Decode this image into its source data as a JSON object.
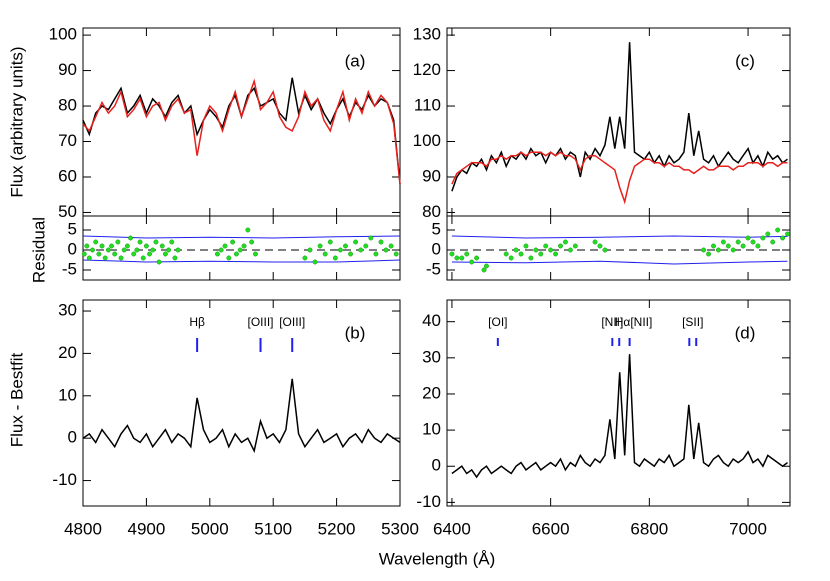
{
  "figure": {
    "xlabel": "Wavelength (Å)"
  },
  "chart_data": [
    {
      "type": "line",
      "label": "(a)",
      "ylabel": "Flux (arbitrary units)",
      "xlim": [
        4800,
        5300
      ],
      "ylim": [
        49,
        102
      ],
      "yticks": [
        50,
        60,
        70,
        80,
        90,
        100
      ],
      "x": [
        4800,
        4810,
        4820,
        4830,
        4840,
        4850,
        4860,
        4870,
        4880,
        4890,
        4900,
        4910,
        4920,
        4930,
        4940,
        4950,
        4960,
        4970,
        4980,
        4990,
        5000,
        5010,
        5020,
        5030,
        5040,
        5050,
        5060,
        5070,
        5080,
        5090,
        5100,
        5110,
        5120,
        5130,
        5140,
        5150,
        5160,
        5170,
        5180,
        5190,
        5200,
        5210,
        5220,
        5230,
        5240,
        5250,
        5260,
        5270,
        5280,
        5290,
        5300
      ],
      "series": [
        {
          "color": "#000000",
          "values": [
            76,
            72,
            78,
            80,
            79,
            82,
            85,
            78,
            80,
            83,
            78,
            82,
            80,
            77,
            81,
            83,
            78,
            80,
            72,
            76,
            79,
            77,
            74,
            80,
            83,
            77,
            83,
            85,
            80,
            81,
            82,
            78,
            76,
            88,
            78,
            83,
            79,
            82,
            78,
            75,
            79,
            82,
            77,
            81,
            79,
            83,
            80,
            82,
            81,
            76,
            58
          ]
        },
        {
          "color": "#e8201c",
          "values": [
            75,
            73,
            77,
            81,
            78,
            80,
            84,
            77,
            79,
            82,
            77,
            80,
            81,
            76,
            80,
            82,
            78,
            79,
            66,
            76,
            80,
            78,
            73,
            79,
            84,
            77,
            82,
            87,
            79,
            81,
            84,
            77,
            74,
            73,
            77,
            84,
            80,
            82,
            76,
            73,
            79,
            84,
            76,
            82,
            78,
            84,
            80,
            83,
            81,
            75,
            58
          ]
        }
      ]
    },
    {
      "type": "scatter",
      "ylabel": "Residual",
      "xlim": [
        4800,
        5300
      ],
      "ylim": [
        -7.5,
        8.5
      ],
      "yticks": [
        -5,
        0,
        5
      ],
      "points": {
        "color": "#22dd22",
        "x": [
          4802,
          4806,
          4810,
          4815,
          4820,
          4825,
          4830,
          4835,
          4840,
          4845,
          4850,
          4855,
          4860,
          4865,
          4870,
          4875,
          4880,
          4885,
          4890,
          4895,
          4900,
          4905,
          4910,
          4915,
          4920,
          4925,
          4930,
          4935,
          4940,
          4945,
          4950,
          5012,
          5018,
          5024,
          5030,
          5036,
          5042,
          5048,
          5054,
          5060,
          5066,
          5072,
          5150,
          5158,
          5166,
          5174,
          5182,
          5190,
          5198,
          5206,
          5214,
          5222,
          5230,
          5238,
          5246,
          5254,
          5262,
          5270,
          5278,
          5286,
          5294
        ],
        "values": [
          -1,
          1,
          -2,
          0,
          2,
          -1,
          1,
          -2,
          0,
          1,
          -1,
          2,
          -2,
          0,
          1,
          3,
          -1,
          0,
          2,
          -2,
          1,
          -1,
          0,
          2,
          -3,
          1,
          -1,
          0,
          2,
          -2,
          0,
          -1,
          0,
          1,
          -2,
          2,
          -1,
          0,
          1,
          5,
          2,
          -1,
          -2,
          0,
          -3,
          1,
          -1,
          2,
          -2,
          0,
          1,
          -1,
          2,
          0,
          1,
          3,
          -1,
          2,
          0,
          1,
          -1
        ]
      },
      "error": {
        "color": "#2020ee",
        "x": [
          4800,
          4900,
          5000,
          5100,
          5200,
          5300
        ],
        "upper": [
          3.5,
          3,
          3.2,
          3,
          3.3,
          3.5
        ],
        "lower": [
          -2.5,
          -3,
          -2.8,
          -3,
          -3,
          -2.5
        ]
      }
    },
    {
      "type": "line",
      "label": "(b)",
      "ylabel": "Flux - Bestfit",
      "xlim": [
        4800,
        5300
      ],
      "xticks": [
        4800,
        4900,
        5000,
        5100,
        5200,
        5300
      ],
      "ylim": [
        -16,
        32.6
      ],
      "yticks": [
        -10,
        0,
        10,
        20,
        30
      ],
      "x": [
        4800,
        4810,
        4820,
        4830,
        4840,
        4850,
        4860,
        4870,
        4880,
        4890,
        4900,
        4910,
        4920,
        4930,
        4940,
        4950,
        4960,
        4970,
        4980,
        4990,
        5000,
        5010,
        5020,
        5030,
        5040,
        5050,
        5060,
        5070,
        5080,
        5090,
        5100,
        5110,
        5120,
        5130,
        5140,
        5150,
        5160,
        5170,
        5180,
        5190,
        5200,
        5210,
        5220,
        5230,
        5240,
        5250,
        5260,
        5270,
        5280,
        5290,
        5300
      ],
      "series": [
        {
          "color": "#000000",
          "values": [
            0,
            1,
            -1,
            2,
            0,
            -2,
            1,
            3,
            0,
            -1,
            1,
            -2,
            0,
            2,
            -1,
            1,
            0,
            -2,
            9.5,
            2,
            -1,
            0,
            2,
            -2,
            1,
            -1,
            0,
            -3,
            4,
            0,
            1,
            -1,
            2,
            14,
            1,
            -2,
            0,
            2,
            -1,
            0,
            1,
            -2,
            0,
            1,
            -1,
            2,
            0,
            -1,
            1,
            0,
            -1
          ]
        }
      ],
      "annotations": [
        {
          "text": "Hβ",
          "x": 4980
        },
        {
          "text": "[OIII]",
          "x": 5080
        },
        {
          "text": "[OIII]",
          "x": 5130
        }
      ],
      "markers": {
        "color": "#2020ee",
        "x": [
          4980,
          5080,
          5130
        ]
      }
    },
    {
      "type": "line",
      "label": "(c)",
      "xlim": [
        6390,
        7085
      ],
      "ylim": [
        79,
        132
      ],
      "yticks": [
        80,
        90,
        100,
        110,
        120,
        130
      ],
      "x": [
        6400,
        6410,
        6420,
        6430,
        6440,
        6450,
        6460,
        6470,
        6480,
        6490,
        6500,
        6510,
        6520,
        6530,
        6540,
        6550,
        6560,
        6570,
        6580,
        6590,
        6600,
        6610,
        6620,
        6630,
        6640,
        6650,
        6660,
        6670,
        6680,
        6690,
        6700,
        6710,
        6720,
        6730,
        6740,
        6750,
        6760,
        6770,
        6780,
        6790,
        6800,
        6810,
        6820,
        6830,
        6840,
        6850,
        6860,
        6870,
        6880,
        6890,
        6900,
        6910,
        6920,
        6930,
        6940,
        6950,
        6960,
        6970,
        6980,
        6990,
        7000,
        7010,
        7020,
        7030,
        7040,
        7050,
        7060,
        7070,
        7080
      ],
      "series": [
        {
          "color": "#000000",
          "values": [
            86,
            90,
            92,
            91,
            94,
            93,
            95,
            92,
            96,
            94,
            97,
            93,
            96,
            95,
            97,
            95,
            98,
            96,
            97,
            94,
            97,
            96,
            98,
            95,
            97,
            96,
            90,
            97,
            95,
            98,
            96,
            99,
            107,
            98,
            107,
            98,
            128,
            97,
            96,
            95,
            97,
            94,
            96,
            93,
            96,
            94,
            95,
            97,
            108,
            96,
            103,
            95,
            94,
            96,
            93,
            95,
            97,
            95,
            94,
            96,
            98,
            94,
            96,
            93,
            97,
            95,
            96,
            94,
            95
          ]
        },
        {
          "color": "#e8201c",
          "values": [
            88,
            91,
            92,
            93,
            94,
            94,
            94,
            93,
            95,
            95,
            96,
            95,
            96,
            96,
            97,
            96,
            97,
            97,
            97,
            96,
            97,
            96,
            97,
            96,
            96,
            95,
            92,
            95,
            96,
            96,
            95,
            94,
            93,
            92,
            87,
            83,
            89,
            93,
            94,
            95,
            95,
            94,
            94,
            93,
            94,
            93,
            93,
            92,
            92,
            91,
            92,
            93,
            92,
            92,
            93,
            93,
            93,
            92,
            93,
            93,
            94,
            94,
            94,
            93,
            94,
            94,
            93,
            94,
            94
          ]
        }
      ]
    },
    {
      "type": "scatter",
      "xlim": [
        6390,
        7085
      ],
      "ylim": [
        -7.5,
        8.5
      ],
      "yticks": [
        -5,
        0,
        5
      ],
      "points": {
        "color": "#22dd22",
        "x": [
          6400,
          6410,
          6420,
          6430,
          6440,
          6450,
          6465,
          6470,
          6510,
          6520,
          6530,
          6540,
          6550,
          6560,
          6570,
          6580,
          6590,
          6600,
          6610,
          6620,
          6630,
          6640,
          6650,
          6690,
          6700,
          6710,
          6910,
          6920,
          6930,
          6940,
          6950,
          6960,
          6970,
          6980,
          6990,
          7000,
          7010,
          7020,
          7030,
          7040,
          7050,
          7060,
          7070,
          7080
        ],
        "values": [
          -1,
          -2,
          -2,
          -1,
          -3,
          -2,
          -5,
          -4,
          -1,
          -2,
          0,
          -1,
          1,
          -2,
          0,
          -1,
          1,
          0,
          -1,
          1,
          2,
          0,
          1,
          2,
          1,
          0,
          0,
          -1,
          1,
          0,
          2,
          1,
          0,
          2,
          1,
          3,
          2,
          1,
          3,
          4,
          2,
          5,
          3,
          4
        ]
      },
      "error": {
        "color": "#2020ee",
        "x": [
          6400,
          6550,
          6700,
          6850,
          7000,
          7080
        ],
        "upper": [
          3.5,
          3,
          3.2,
          3.5,
          3.2,
          3.4
        ],
        "lower": [
          -3,
          -3.2,
          -2.8,
          -3.5,
          -3,
          -2.8
        ]
      }
    },
    {
      "type": "line",
      "label": "(d)",
      "xlim": [
        6390,
        7085
      ],
      "xticks": [
        6400,
        6600,
        6800,
        7000
      ],
      "ylim": [
        -11,
        46
      ],
      "yticks": [
        -10,
        0,
        10,
        20,
        30,
        40
      ],
      "x": [
        6400,
        6410,
        6420,
        6430,
        6440,
        6450,
        6460,
        6470,
        6480,
        6490,
        6500,
        6510,
        6520,
        6530,
        6540,
        6550,
        6560,
        6570,
        6580,
        6590,
        6600,
        6610,
        6620,
        6630,
        6640,
        6650,
        6660,
        6670,
        6680,
        6690,
        6700,
        6710,
        6720,
        6730,
        6740,
        6750,
        6760,
        6770,
        6780,
        6790,
        6800,
        6810,
        6820,
        6830,
        6840,
        6850,
        6860,
        6870,
        6880,
        6890,
        6900,
        6910,
        6920,
        6930,
        6940,
        6950,
        6960,
        6970,
        6980,
        6990,
        7000,
        7010,
        7020,
        7030,
        7040,
        7050,
        7060,
        7070,
        7080
      ],
      "series": [
        {
          "color": "#000000",
          "values": [
            -2,
            -1,
            0,
            -2,
            -1,
            -3,
            -1,
            0,
            -2,
            -1,
            0,
            -1,
            -2,
            0,
            1,
            -1,
            0,
            1,
            -1,
            0,
            1,
            0,
            2,
            -1,
            1,
            0,
            3,
            1,
            0,
            2,
            1,
            3,
            13,
            2,
            26,
            3,
            31,
            1,
            0,
            2,
            1,
            0,
            2,
            1,
            3,
            0,
            1,
            2,
            17,
            2,
            12,
            1,
            0,
            2,
            3,
            1,
            0,
            2,
            1,
            2,
            4,
            1,
            2,
            0,
            3,
            2,
            1,
            0,
            1
          ]
        }
      ],
      "annotations": [
        {
          "text": "[OI]",
          "x": 6493
        },
        {
          "text": "[NII]",
          "x": 6725
        },
        {
          "text": "Hα[NII]",
          "x": 6768
        },
        {
          "text": "[SII]",
          "x": 6888
        }
      ],
      "markers": {
        "color": "#2020ee",
        "x": [
          6493,
          6725,
          6739,
          6760,
          6881,
          6895
        ]
      }
    }
  ]
}
